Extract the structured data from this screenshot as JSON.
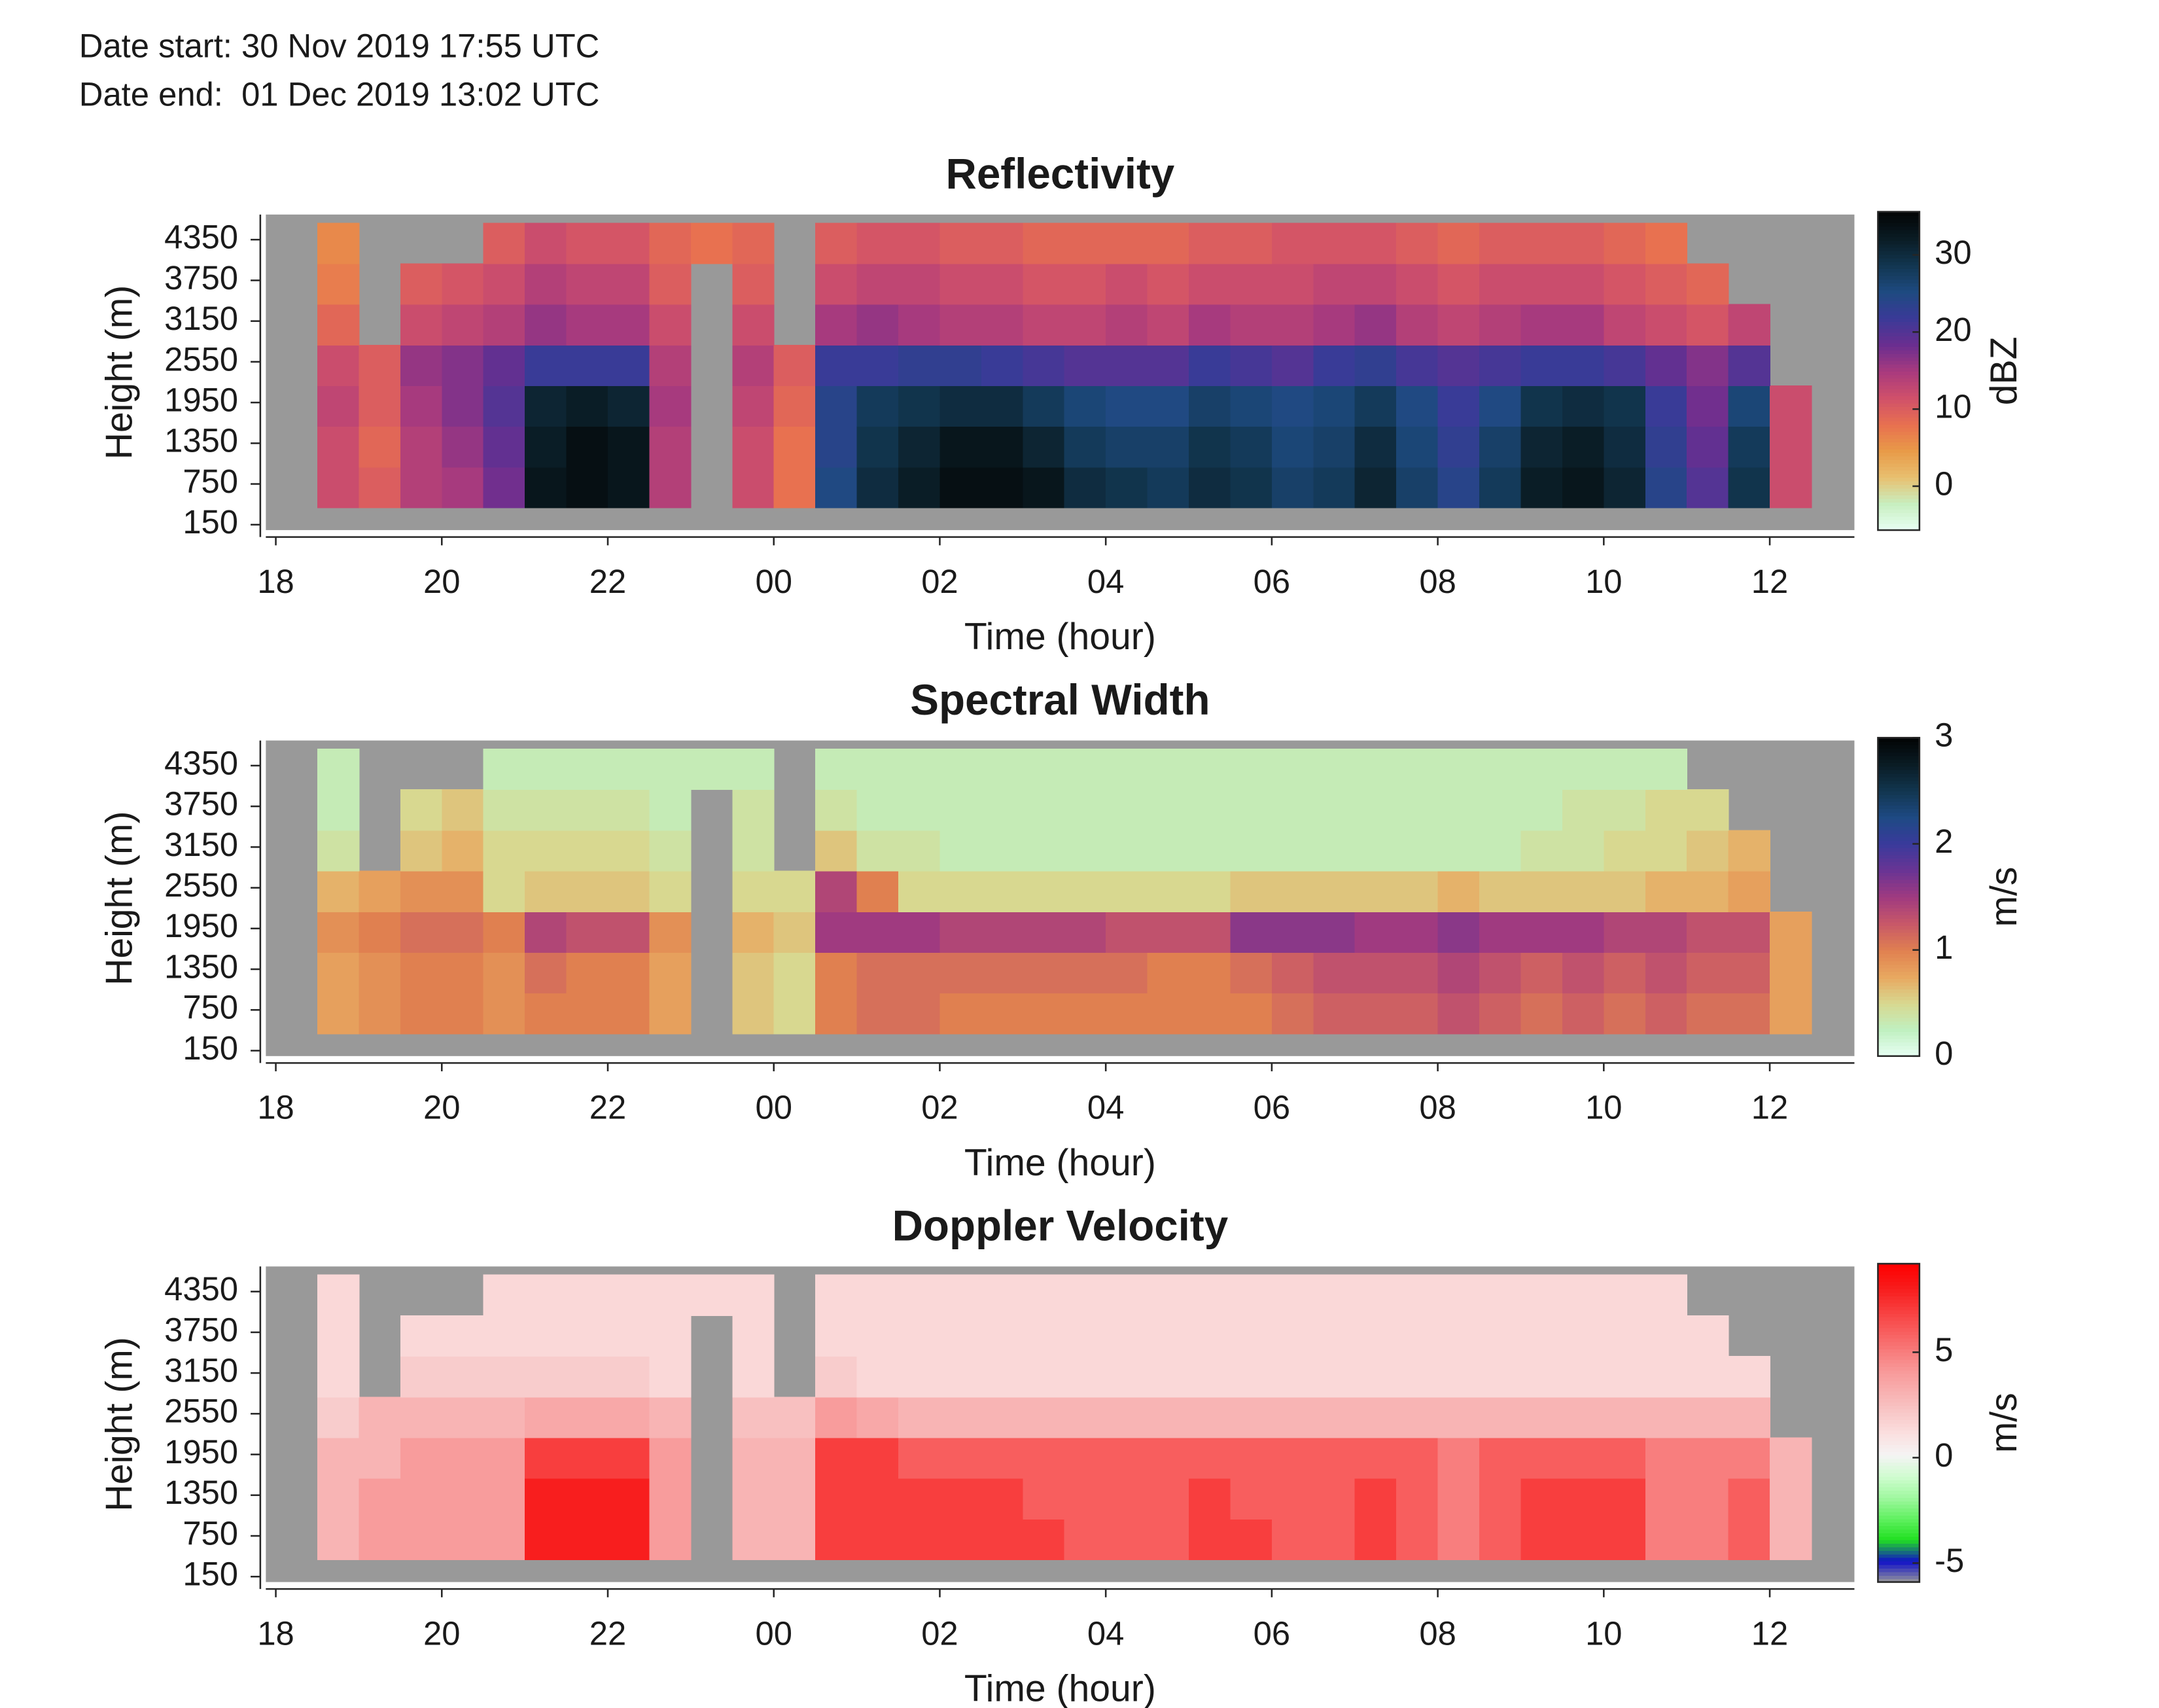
{
  "header": {
    "date_start": "Date start: 30 Nov 2019 17:55 UTC",
    "date_end": "Date end:  01 Dec 2019 13:02 UTC"
  },
  "chart_data": [
    {
      "type": "heatmap",
      "title": "Reflectivity",
      "xlabel": "Time (hour)",
      "ylabel": "Height (m)",
      "colorbar_label": "dBZ",
      "xlim": [
        17.88,
        37.02
      ],
      "xticks": [
        18,
        20,
        22,
        {
          "value": 24,
          "label": "00"
        },
        {
          "value": 26,
          "label": "02"
        },
        {
          "value": 28,
          "label": "04"
        },
        {
          "value": 30,
          "label": "06"
        },
        {
          "value": 32,
          "label": "08"
        },
        {
          "value": 34,
          "label": "10"
        },
        {
          "value": 36,
          "label": "12"
        }
      ],
      "ylim": [
        70,
        4720
      ],
      "yticks": [
        150,
        750,
        1350,
        1950,
        2550,
        3150,
        3750,
        4350
      ],
      "zlim": [
        -5.7,
        35.6
      ],
      "zticks": [
        0,
        10,
        20,
        30
      ],
      "background": "#999999",
      "colormap": [
        "#e8fff4",
        "#c8efc0",
        "#e8c070",
        "#e89a48",
        "#e87050",
        "#d0506a",
        "#a83a7e",
        "#6a2e90",
        "#3a3a98",
        "#1e4a80",
        "#123650",
        "#0a1c24",
        "#020405"
      ],
      "x": [
        18.25,
        18.75,
        19.25,
        19.75,
        20.25,
        20.75,
        21.25,
        21.75,
        22.25,
        22.75,
        23.25,
        23.75,
        24.25,
        24.75,
        25.25,
        25.75,
        26.25,
        26.75,
        27.25,
        27.75,
        28.25,
        28.75,
        29.25,
        29.75,
        30.25,
        30.75,
        31.25,
        31.75,
        32.25,
        32.75,
        33.25,
        33.75,
        34.25,
        34.75,
        35.25,
        35.75,
        36.25
      ],
      "y": [
        700,
        1300,
        1900,
        2500,
        3100,
        3700,
        4300
      ],
      "z": [
        [
          null,
          12,
          10,
          14,
          15,
          18,
          33,
          34,
          33,
          14,
          null,
          12,
          8,
          25,
          30,
          32,
          34,
          34,
          33,
          30,
          29,
          28,
          30,
          29,
          27,
          28,
          31,
          27,
          24,
          28,
          32,
          33,
          31,
          24,
          20,
          29,
          12
        ],
        [
          null,
          12,
          9,
          14,
          16,
          19,
          32,
          34,
          33,
          14,
          null,
          12,
          8,
          24,
          29,
          31,
          33,
          33,
          31,
          28,
          27,
          27,
          29,
          28,
          26,
          27,
          30,
          26,
          23,
          27,
          31,
          32,
          30,
          23,
          19,
          28,
          12
        ],
        [
          null,
          13,
          10,
          15,
          17,
          20,
          31,
          32,
          31,
          15,
          null,
          13,
          9,
          24,
          28,
          29,
          30,
          30,
          28,
          26,
          25,
          25,
          27,
          26,
          25,
          26,
          28,
          25,
          22,
          25,
          29,
          30,
          29,
          22,
          18,
          26,
          12
        ],
        [
          null,
          12,
          10,
          16,
          17,
          19,
          22,
          22,
          22,
          14,
          null,
          14,
          10,
          22,
          22,
          23,
          23,
          22,
          21,
          20,
          20,
          20,
          22,
          21,
          20,
          22,
          23,
          21,
          20,
          21,
          22,
          22,
          21,
          19,
          17,
          20,
          null
        ],
        [
          null,
          9,
          null,
          12,
          13,
          14,
          16,
          15,
          15,
          12,
          null,
          12,
          null,
          15,
          16,
          15,
          14,
          14,
          13,
          13,
          14,
          13,
          15,
          14,
          14,
          15,
          16,
          14,
          13,
          14,
          15,
          15,
          13,
          12,
          11,
          13,
          null
        ],
        [
          null,
          7,
          null,
          10,
          11,
          12,
          14,
          13,
          13,
          10,
          null,
          10,
          null,
          12,
          13,
          13,
          12,
          12,
          11,
          11,
          12,
          11,
          12,
          12,
          12,
          13,
          13,
          12,
          11,
          12,
          12,
          12,
          11,
          10,
          9,
          null,
          null
        ],
        [
          null,
          6,
          null,
          null,
          null,
          10,
          12,
          11,
          11,
          9,
          8,
          9,
          null,
          10,
          11,
          11,
          10,
          10,
          9,
          9,
          9,
          9,
          10,
          10,
          11,
          11,
          11,
          10,
          9,
          10,
          10,
          10,
          9,
          8,
          null,
          null,
          null
        ]
      ]
    },
    {
      "type": "heatmap",
      "title": "Spectral Width",
      "xlabel": "Time (hour)",
      "ylabel": "Height (m)",
      "colorbar_label": "m/s",
      "xlim": [
        17.88,
        37.02
      ],
      "xticks": [
        18,
        20,
        22,
        {
          "value": 24,
          "label": "00"
        },
        {
          "value": 26,
          "label": "02"
        },
        {
          "value": 28,
          "label": "04"
        },
        {
          "value": 30,
          "label": "06"
        },
        {
          "value": 32,
          "label": "08"
        },
        {
          "value": 34,
          "label": "10"
        },
        {
          "value": 36,
          "label": "12"
        }
      ],
      "ylim": [
        70,
        4720
      ],
      "yticks": [
        150,
        750,
        1350,
        1950,
        2550,
        3150,
        3750,
        4350
      ],
      "zlim": [
        0,
        3
      ],
      "zticks": [
        0,
        1,
        2,
        3
      ],
      "background": "#999999",
      "colormap": [
        "#e8fff4",
        "#c0f0c0",
        "#d8d890",
        "#e8a860",
        "#e08050",
        "#c85868",
        "#a03a80",
        "#6a3494",
        "#3a3a9c",
        "#1e4a84",
        "#123650",
        "#0a1c24",
        "#020405"
      ],
      "x": [
        18.25,
        18.75,
        19.25,
        19.75,
        20.25,
        20.75,
        21.25,
        21.75,
        22.25,
        22.75,
        23.25,
        23.75,
        24.25,
        24.75,
        25.25,
        25.75,
        26.25,
        26.75,
        27.25,
        27.75,
        28.25,
        28.75,
        29.25,
        29.75,
        30.25,
        30.75,
        31.25,
        31.75,
        32.25,
        32.75,
        33.25,
        33.75,
        34.25,
        34.75,
        35.25,
        35.75,
        36.25
      ],
      "y": [
        700,
        1300,
        1900,
        2500,
        3100,
        3700,
        4300
      ],
      "z": [
        [
          null,
          0.8,
          0.9,
          1.0,
          1.0,
          0.9,
          1.0,
          1.0,
          1.0,
          0.8,
          null,
          0.6,
          0.5,
          1.0,
          1.1,
          1.1,
          1.0,
          1.0,
          1.0,
          1.0,
          1.0,
          1.0,
          1.0,
          1.0,
          1.1,
          1.2,
          1.2,
          1.2,
          1.3,
          1.2,
          1.1,
          1.2,
          1.1,
          1.2,
          1.1,
          1.1,
          0.8
        ],
        [
          null,
          0.8,
          0.9,
          1.0,
          1.0,
          0.9,
          1.1,
          1.0,
          1.0,
          0.8,
          null,
          0.6,
          0.5,
          1.0,
          1.1,
          1.1,
          1.1,
          1.1,
          1.1,
          1.1,
          1.1,
          1.0,
          1.0,
          1.1,
          1.2,
          1.3,
          1.3,
          1.3,
          1.4,
          1.3,
          1.2,
          1.3,
          1.2,
          1.3,
          1.2,
          1.2,
          0.8
        ],
        [
          null,
          0.9,
          1.0,
          1.1,
          1.1,
          1.0,
          1.4,
          1.3,
          1.3,
          0.9,
          null,
          0.7,
          0.6,
          1.5,
          1.5,
          1.5,
          1.4,
          1.4,
          1.4,
          1.4,
          1.3,
          1.3,
          1.3,
          1.6,
          1.6,
          1.6,
          1.5,
          1.5,
          1.6,
          1.5,
          1.5,
          1.5,
          1.4,
          1.4,
          1.3,
          1.3,
          0.8
        ],
        [
          null,
          0.7,
          0.8,
          0.9,
          0.9,
          0.5,
          0.6,
          0.6,
          0.6,
          0.5,
          null,
          0.5,
          0.5,
          1.4,
          1.0,
          0.5,
          0.5,
          0.5,
          0.5,
          0.5,
          0.5,
          0.5,
          0.5,
          0.6,
          0.6,
          0.6,
          0.6,
          0.6,
          0.7,
          0.6,
          0.6,
          0.6,
          0.6,
          0.7,
          0.7,
          0.8,
          null
        ],
        [
          null,
          0.4,
          null,
          0.6,
          0.7,
          0.5,
          0.5,
          0.5,
          0.5,
          0.4,
          null,
          0.4,
          null,
          0.6,
          0.4,
          0.4,
          0.3,
          0.3,
          0.3,
          0.3,
          0.3,
          0.3,
          0.3,
          0.3,
          0.3,
          0.3,
          0.3,
          0.3,
          0.3,
          0.3,
          0.4,
          0.4,
          0.5,
          0.5,
          0.6,
          0.7,
          null
        ],
        [
          null,
          0.3,
          null,
          0.5,
          0.6,
          0.4,
          0.4,
          0.4,
          0.4,
          0.3,
          null,
          0.4,
          null,
          0.4,
          0.3,
          0.3,
          0.3,
          0.3,
          0.3,
          0.3,
          0.3,
          0.3,
          0.3,
          0.3,
          0.3,
          0.3,
          0.3,
          0.3,
          0.3,
          0.3,
          0.3,
          0.4,
          0.4,
          0.5,
          0.5,
          null,
          null
        ],
        [
          null,
          0.3,
          null,
          null,
          null,
          0.3,
          0.3,
          0.3,
          0.3,
          0.3,
          0.3,
          0.3,
          null,
          0.3,
          0.3,
          0.3,
          0.3,
          0.3,
          0.3,
          0.3,
          0.3,
          0.3,
          0.3,
          0.3,
          0.3,
          0.3,
          0.3,
          0.3,
          0.3,
          0.3,
          0.3,
          0.3,
          0.3,
          0.3,
          null,
          null,
          null
        ]
      ]
    },
    {
      "type": "heatmap",
      "title": "Doppler Velocity",
      "xlabel": "Time (hour)",
      "ylabel": "Height (m)",
      "colorbar_label": "m/s",
      "xlim": [
        17.88,
        37.02
      ],
      "xticks": [
        18,
        20,
        22,
        {
          "value": 24,
          "label": "00"
        },
        {
          "value": 26,
          "label": "02"
        },
        {
          "value": 28,
          "label": "04"
        },
        {
          "value": 30,
          "label": "06"
        },
        {
          "value": 32,
          "label": "08"
        },
        {
          "value": 34,
          "label": "10"
        },
        {
          "value": 36,
          "label": "12"
        }
      ],
      "ylim": [
        70,
        4720
      ],
      "yticks": [
        150,
        750,
        1350,
        1950,
        2550,
        3150,
        3750,
        4350
      ],
      "zlim": [
        -5.9,
        9.2
      ],
      "zticks": [
        -5,
        0,
        5
      ],
      "background": "#999999",
      "colormap": [
        "#999999",
        "#1010c8",
        "#20e020",
        "#60f060",
        "#a0f8a0",
        "#d0fcd0",
        "#f4f4f4",
        "#fbe0e0",
        "#f8c8c8",
        "#f8b0b0",
        "#f89898",
        "#f87878",
        "#f85858",
        "#f83838",
        "#f81818",
        "#ff0000"
      ],
      "x": [
        18.25,
        18.75,
        19.25,
        19.75,
        20.25,
        20.75,
        21.25,
        21.75,
        22.25,
        22.75,
        23.25,
        23.75,
        24.25,
        24.75,
        25.25,
        25.75,
        26.25,
        26.75,
        27.25,
        27.75,
        28.25,
        28.75,
        29.25,
        29.75,
        30.25,
        30.75,
        31.25,
        31.75,
        32.25,
        32.75,
        33.25,
        33.75,
        34.25,
        34.75,
        35.25,
        35.75,
        36.25
      ],
      "y": [
        700,
        1300,
        1900,
        2500,
        3100,
        3700,
        4300
      ],
      "z": [
        [
          null,
          3,
          4,
          4,
          4,
          4,
          8,
          8,
          8,
          4,
          null,
          3,
          3,
          7,
          7,
          7,
          7,
          7,
          7,
          6,
          6,
          6,
          7,
          7,
          6,
          6,
          7,
          6,
          5,
          6,
          7,
          7,
          7,
          5,
          5,
          6,
          3
        ],
        [
          null,
          3,
          4,
          4,
          4,
          4,
          8,
          8,
          8,
          4,
          null,
          3,
          3,
          7,
          7,
          7,
          7,
          7,
          6,
          6,
          6,
          6,
          7,
          6,
          6,
          6,
          7,
          6,
          5,
          6,
          7,
          7,
          7,
          5,
          5,
          6,
          3
        ],
        [
          null,
          3,
          3,
          4,
          4,
          4,
          7,
          7,
          7,
          4,
          null,
          3,
          3,
          7,
          7,
          6,
          6,
          6,
          6,
          6,
          6,
          6,
          6,
          6,
          6,
          6,
          6,
          6,
          5,
          6,
          6,
          6,
          6,
          5,
          5,
          5,
          3
        ],
        [
          null,
          2,
          3,
          3,
          3,
          3,
          3.5,
          3.5,
          3.5,
          3,
          null,
          2.5,
          2.5,
          4,
          3.5,
          3,
          3,
          3,
          3,
          3,
          3,
          3,
          3,
          3,
          3,
          3,
          3,
          3,
          3,
          3,
          3,
          3,
          3,
          3,
          3,
          3,
          null
        ],
        [
          null,
          1.5,
          null,
          2,
          2,
          2,
          2,
          2,
          2,
          1.5,
          null,
          1.5,
          null,
          2,
          1.5,
          1.5,
          1.5,
          1.5,
          1.5,
          1.5,
          1.5,
          1.5,
          1.5,
          1.5,
          1.5,
          1.5,
          1.5,
          1.5,
          1.5,
          1.5,
          1.5,
          1.5,
          1.5,
          1.5,
          1.5,
          1.5,
          null
        ],
        [
          null,
          1.5,
          null,
          1.5,
          1.5,
          1.5,
          1.5,
          1.5,
          1.5,
          1.5,
          null,
          1.5,
          null,
          1.5,
          1.5,
          1.5,
          1.5,
          1.5,
          1.5,
          1.5,
          1.5,
          1.5,
          1.5,
          1.5,
          1.5,
          1.5,
          1.5,
          1.5,
          1.5,
          1.5,
          1.5,
          1.5,
          1.5,
          1.5,
          1.5,
          null,
          null
        ],
        [
          null,
          1.5,
          null,
          null,
          null,
          1.5,
          1.5,
          1.5,
          1.5,
          1.5,
          1.5,
          1.5,
          null,
          1.5,
          1.5,
          1.5,
          1.5,
          1.5,
          1.5,
          1.5,
          1.5,
          1.5,
          1.5,
          1.5,
          1.5,
          1.5,
          1.5,
          1.5,
          1.5,
          1.5,
          1.5,
          1.5,
          1.5,
          1.5,
          null,
          null,
          null
        ]
      ]
    }
  ]
}
